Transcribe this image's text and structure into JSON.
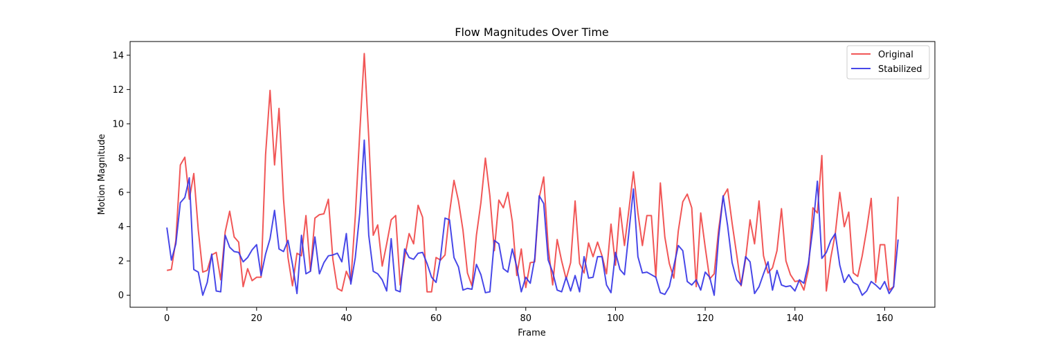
{
  "chart_data": {
    "type": "line",
    "title": "Flow Magnitudes Over Time",
    "xlabel": "Frame",
    "ylabel": "Motion Magnitude",
    "xlim": [
      -8.2,
      171.2
    ],
    "ylim": [
      -0.7,
      14.8
    ],
    "xticks": [
      0,
      20,
      40,
      60,
      80,
      100,
      120,
      140,
      160
    ],
    "yticks": [
      0,
      2,
      4,
      6,
      8,
      10,
      12,
      14
    ],
    "grid": false,
    "legend_position": "top-right",
    "series": [
      {
        "name": "Original",
        "color": "#ef4444",
        "values": [
          1.45,
          1.5,
          3.2,
          7.6,
          8.05,
          5.6,
          7.1,
          3.8,
          1.35,
          1.45,
          2.35,
          2.5,
          0.9,
          3.7,
          4.9,
          3.4,
          3.1,
          0.5,
          1.55,
          0.85,
          1.05,
          1.05,
          8.2,
          11.95,
          7.6,
          10.9,
          5.6,
          2.2,
          0.55,
          2.45,
          2.3,
          4.65,
          1.4,
          4.5,
          4.7,
          4.75,
          5.6,
          2.1,
          0.4,
          0.25,
          1.4,
          0.8,
          4.6,
          9.5,
          14.1,
          9.2,
          3.5,
          4.1,
          1.7,
          3.0,
          4.4,
          4.65,
          0.6,
          2.2,
          3.6,
          3.0,
          5.25,
          4.55,
          0.2,
          0.2,
          2.2,
          2.05,
          2.35,
          4.8,
          6.7,
          5.5,
          3.8,
          1.3,
          0.55,
          3.5,
          5.4,
          8.0,
          5.8,
          2.6,
          5.55,
          5.1,
          6.0,
          4.3,
          1.15,
          2.7,
          0.45,
          1.9,
          1.95,
          5.7,
          6.9,
          2.8,
          0.6,
          3.25,
          2.0,
          0.95,
          1.9,
          5.5,
          1.85,
          1.3,
          3.05,
          2.25,
          3.1,
          2.3,
          1.25,
          4.15,
          1.75,
          5.1,
          2.9,
          5.0,
          7.2,
          4.8,
          2.9,
          4.65,
          4.65,
          1.05,
          6.55,
          3.4,
          1.85,
          1.0,
          3.75,
          5.45,
          5.9,
          5.1,
          0.5,
          4.8,
          2.8,
          0.95,
          1.25,
          3.85,
          5.75,
          6.2,
          4.2,
          2.4,
          0.55,
          2.1,
          4.4,
          3.0,
          5.5,
          2.3,
          1.3,
          1.6,
          2.6,
          5.05,
          2.0,
          1.2,
          0.8,
          0.85,
          0.3,
          1.5,
          5.1,
          4.8,
          8.15,
          0.25,
          2.2,
          3.6,
          6.0,
          4.0,
          4.85,
          1.3,
          1.1,
          2.3,
          3.85,
          5.65,
          0.75,
          2.95,
          2.95,
          0.3,
          0.5,
          5.75
        ]
      },
      {
        "name": "Stabilized",
        "color": "#3333e6",
        "values": [
          3.95,
          2.05,
          3.0,
          5.4,
          5.7,
          6.85,
          1.5,
          1.35,
          0.0,
          0.75,
          2.4,
          0.25,
          0.2,
          3.5,
          2.8,
          2.55,
          2.5,
          1.95,
          2.2,
          2.65,
          2.95,
          1.15,
          2.4,
          3.3,
          4.95,
          2.7,
          2.55,
          3.2,
          1.8,
          0.1,
          3.5,
          1.25,
          1.4,
          3.4,
          1.25,
          1.9,
          2.3,
          2.35,
          2.45,
          1.95,
          3.6,
          0.65,
          2.2,
          4.8,
          9.05,
          3.5,
          1.4,
          1.25,
          0.9,
          0.25,
          3.3,
          0.3,
          0.2,
          2.7,
          2.2,
          2.1,
          2.45,
          2.5,
          1.85,
          1.05,
          0.75,
          2.2,
          4.5,
          4.4,
          2.2,
          1.65,
          0.3,
          0.4,
          0.35,
          1.8,
          1.2,
          0.15,
          0.2,
          3.2,
          3.0,
          1.55,
          1.35,
          2.7,
          1.65,
          0.2,
          1.05,
          0.7,
          2.15,
          5.8,
          5.35,
          2.05,
          1.35,
          0.3,
          0.2,
          1.05,
          0.25,
          1.15,
          0.2,
          2.25,
          1.0,
          1.05,
          2.25,
          2.25,
          0.6,
          0.15,
          2.5,
          1.5,
          1.2,
          3.7,
          6.2,
          2.25,
          1.3,
          1.35,
          1.2,
          1.05,
          0.15,
          0.05,
          0.5,
          1.7,
          2.9,
          2.6,
          0.8,
          0.6,
          0.9,
          0.3,
          1.35,
          1.05,
          0.0,
          3.4,
          5.8,
          4.05,
          1.9,
          0.9,
          0.6,
          2.25,
          1.95,
          0.1,
          0.5,
          1.25,
          1.95,
          0.3,
          1.45,
          0.6,
          0.5,
          0.55,
          0.25,
          0.9,
          0.7,
          1.85,
          3.9,
          6.65,
          2.15,
          2.5,
          3.2,
          3.6,
          1.75,
          0.75,
          1.2,
          0.75,
          0.6,
          0.0,
          0.25,
          0.8,
          0.6,
          0.35,
          0.8,
          0.1,
          0.5,
          3.25
        ]
      }
    ]
  }
}
